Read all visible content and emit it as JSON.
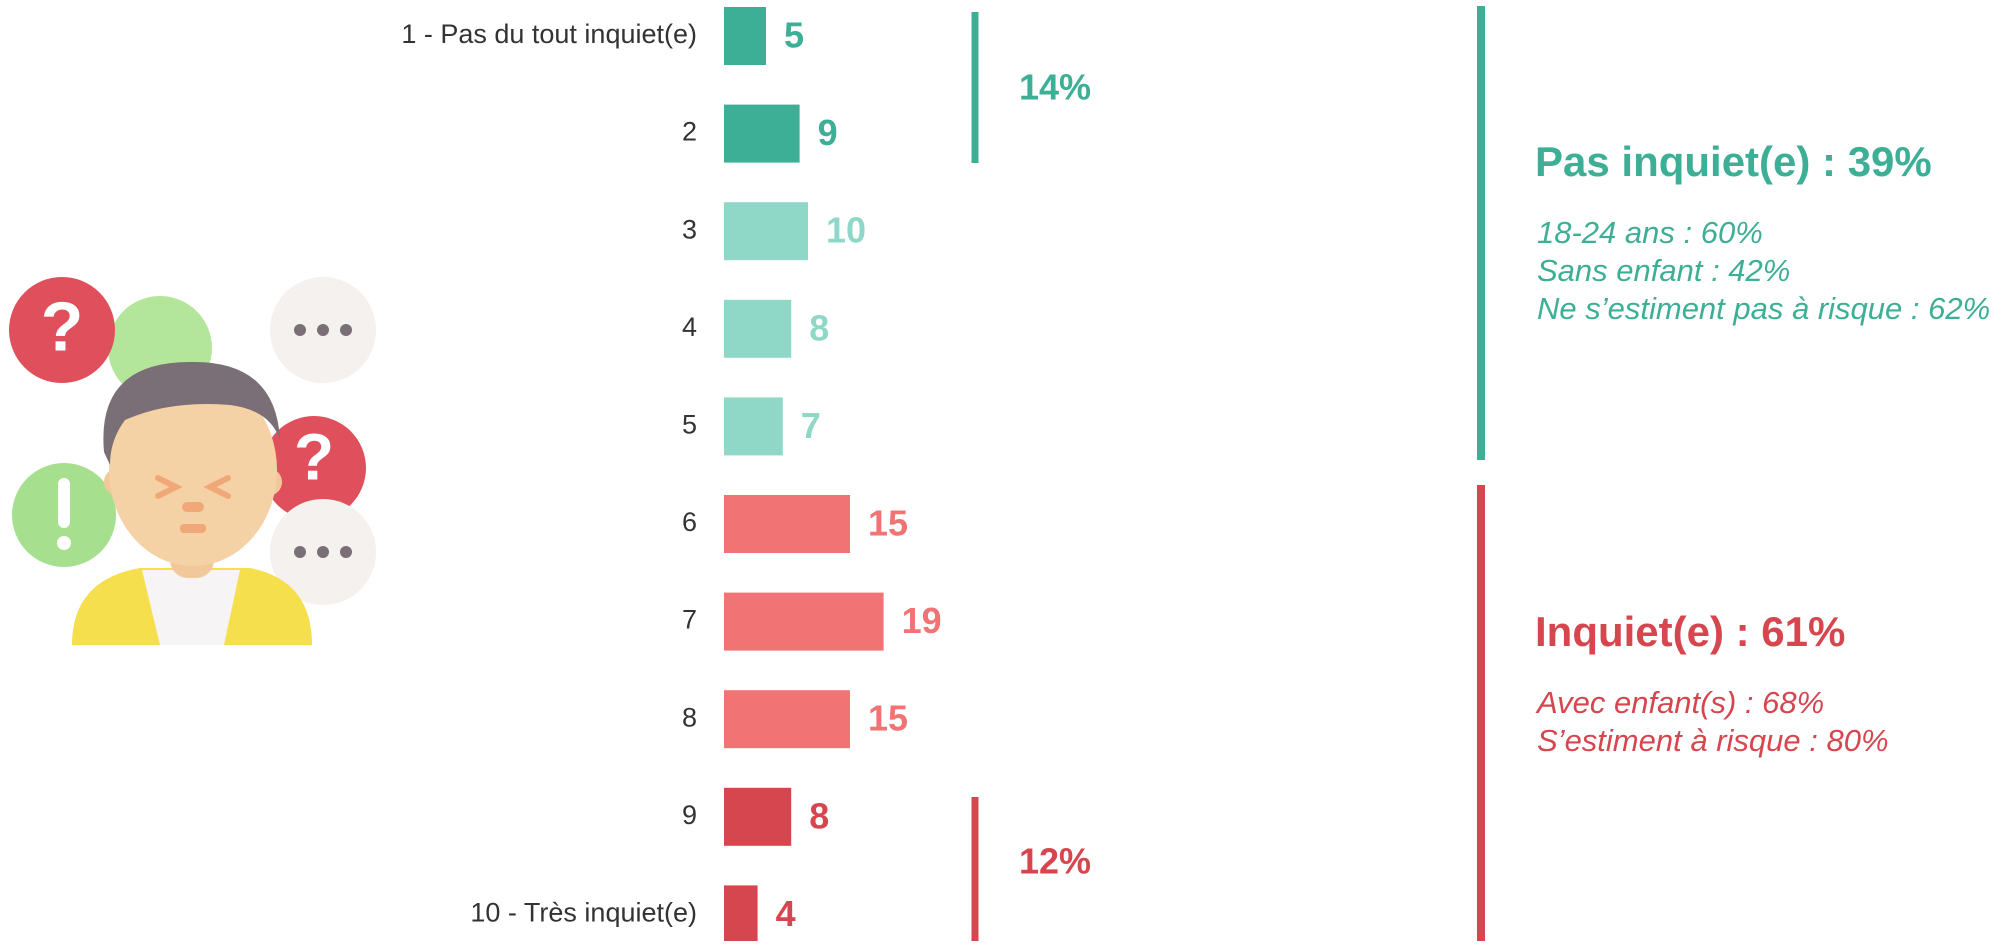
{
  "chart_data": {
    "type": "hbar",
    "categories": [
      "1 - Pas du tout inquiet(e)",
      "2",
      "3",
      "4",
      "5",
      "6",
      "7",
      "8",
      "9",
      "10 - Très inquiet(e)"
    ],
    "values": [
      5,
      9,
      10,
      8,
      7,
      15,
      19,
      15,
      8,
      4
    ],
    "colors": [
      "#3daf96",
      "#3daf96",
      "#8fd8c8",
      "#8fd8c8",
      "#8fd8c8",
      "#f27374",
      "#f27374",
      "#f27374",
      "#d6464e",
      "#d6464e"
    ],
    "annotations": [
      {
        "label": "14%",
        "color": "#3daf96"
      },
      {
        "label": "12%",
        "color": "#d6464e"
      }
    ],
    "groups": [
      {
        "title": "Pas inquiet(e) : 39%",
        "color": "#3daf96",
        "notes": [
          "18-24 ans : 60%",
          "Sans enfant : 42%",
          "Ne s’estiment pas à risque : 62%"
        ]
      },
      {
        "title": "Inquiet(e) : 61%",
        "color": "#d6464e",
        "notes": [
          "Avec enfant(s) : 68%",
          "S’estiment à risque : 80%"
        ]
      }
    ]
  }
}
